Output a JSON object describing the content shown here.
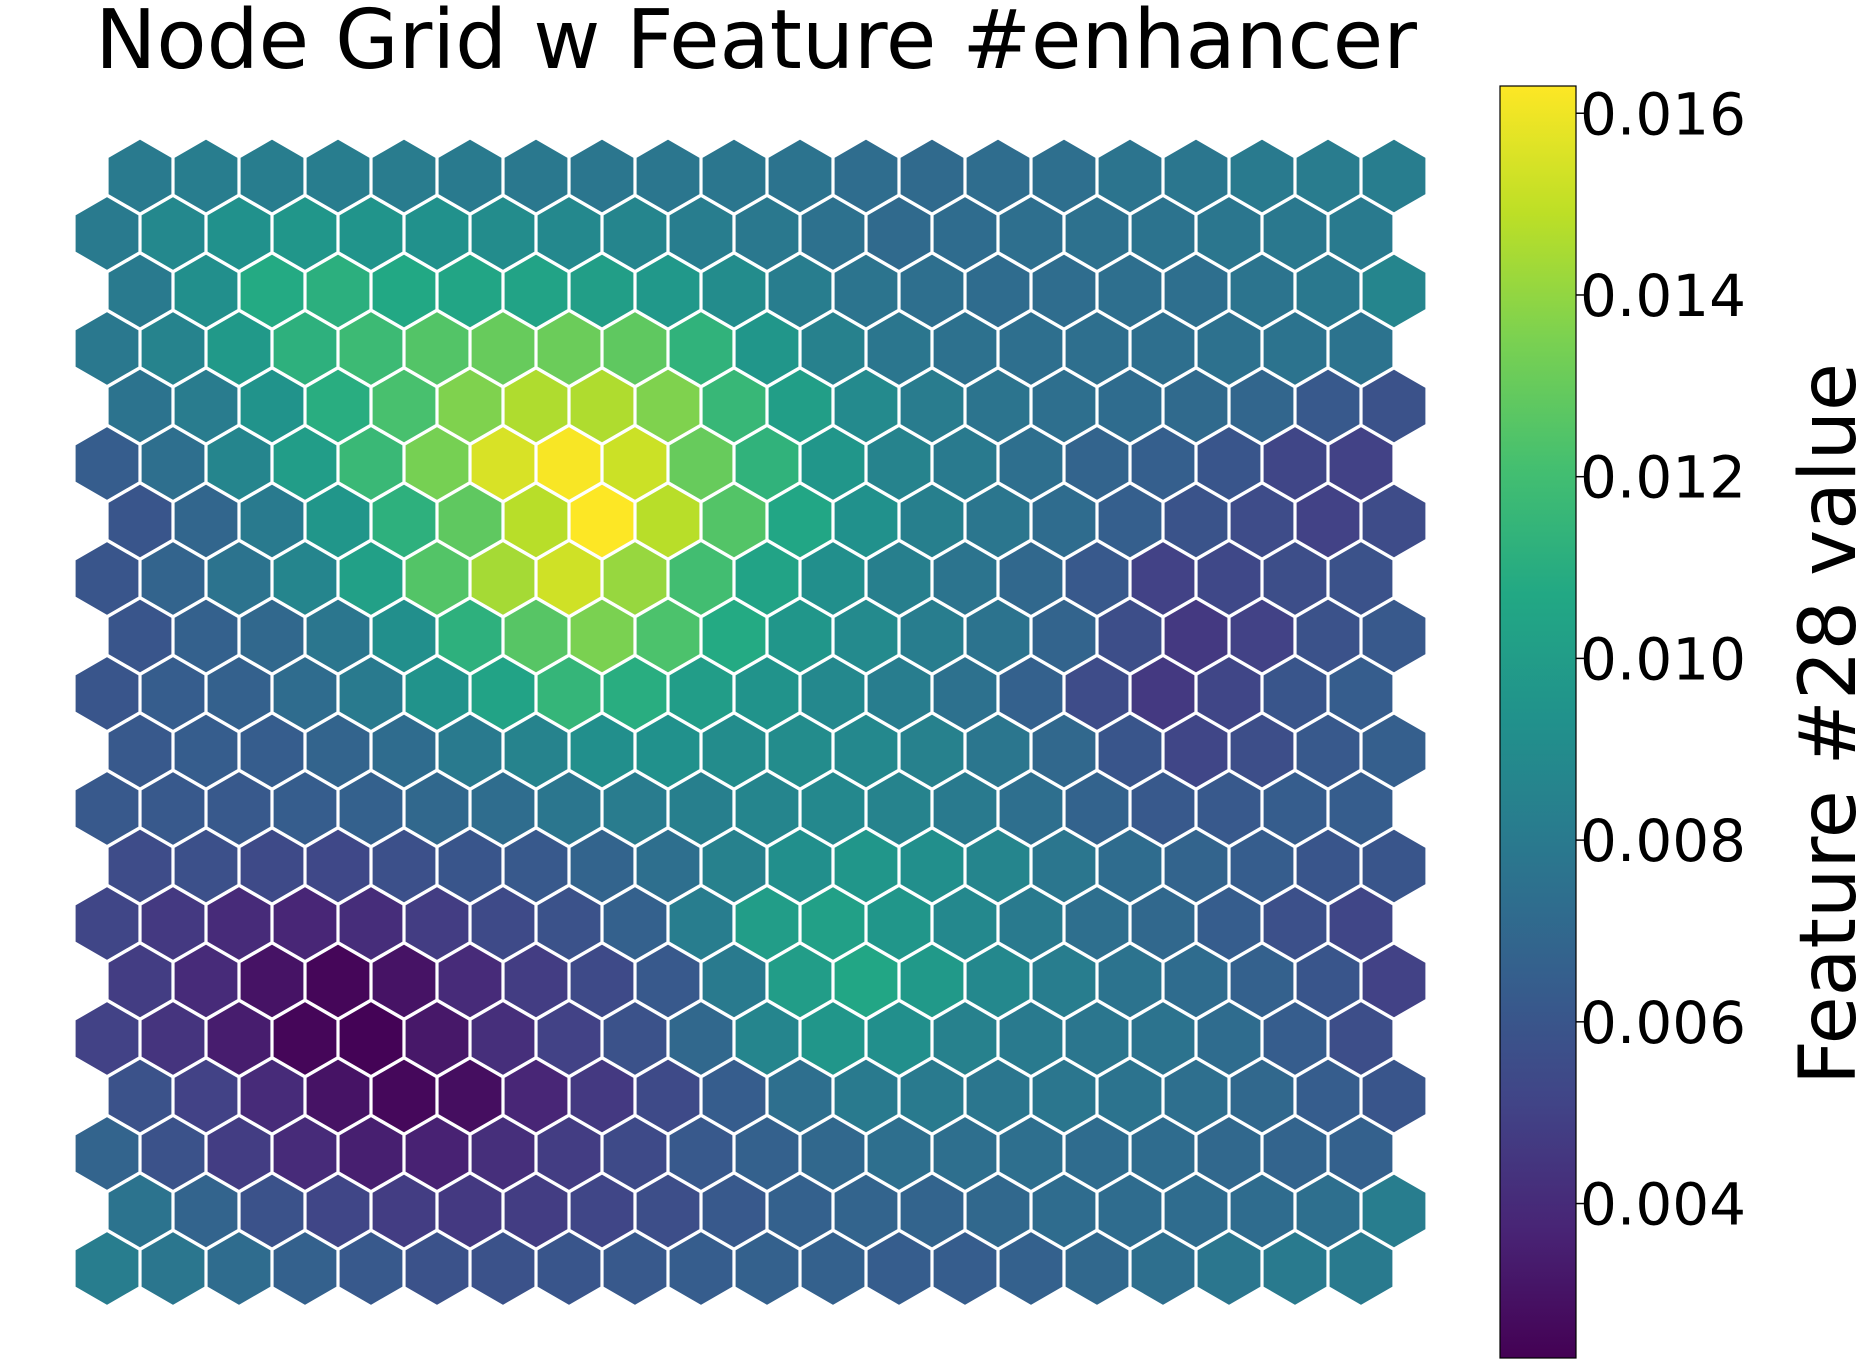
{
  "chart_data": {
    "type": "heatmap",
    "title": "Node Grid w Feature #enhancer",
    "grid": {
      "rows": 20,
      "cols": 20,
      "layout": "hexagonal",
      "axes_visible": false
    },
    "colormap": "viridis",
    "color_range": [
      0.0023,
      0.0163
    ],
    "colorbar": {
      "label": "Feature #28 value",
      "ticks": [
        0.004,
        0.006,
        0.008,
        0.01,
        0.012,
        0.014,
        0.016
      ],
      "tick_labels": [
        "0.004",
        "0.006",
        "0.008",
        "0.010",
        "0.012",
        "0.014",
        "0.016"
      ],
      "position": "right"
    },
    "values": [
      [
        0.008,
        0.0082,
        0.0082,
        0.0082,
        0.0081,
        0.008,
        0.0079,
        0.0078,
        0.0078,
        0.0078,
        0.0076,
        0.0073,
        0.0071,
        0.0073,
        0.0074,
        0.0077,
        0.0078,
        0.008,
        0.0081,
        0.0082
      ],
      [
        0.008,
        0.0088,
        0.0093,
        0.0096,
        0.0095,
        0.0093,
        0.009,
        0.0088,
        0.0086,
        0.0082,
        0.0079,
        0.0075,
        0.0071,
        0.0072,
        0.0074,
        0.0075,
        0.0076,
        0.0078,
        0.0079,
        0.008
      ],
      [
        0.008,
        0.0092,
        0.0108,
        0.0111,
        0.0107,
        0.0105,
        0.0104,
        0.0101,
        0.0097,
        0.009,
        0.0082,
        0.0077,
        0.0074,
        0.0072,
        0.0073,
        0.0074,
        0.0074,
        0.0077,
        0.0079,
        0.0086
      ],
      [
        0.0079,
        0.0085,
        0.0098,
        0.0112,
        0.0118,
        0.0125,
        0.013,
        0.0131,
        0.0128,
        0.0113,
        0.0096,
        0.0084,
        0.0078,
        0.0075,
        0.0074,
        0.0074,
        0.0074,
        0.0075,
        0.0076,
        0.0076
      ],
      [
        0.0076,
        0.0081,
        0.0094,
        0.011,
        0.0122,
        0.0136,
        0.0146,
        0.0146,
        0.0136,
        0.0116,
        0.0101,
        0.0089,
        0.0081,
        0.0077,
        0.0074,
        0.0072,
        0.0071,
        0.0069,
        0.0062,
        0.0058
      ],
      [
        0.0064,
        0.0074,
        0.0086,
        0.01,
        0.0117,
        0.0134,
        0.0155,
        0.0162,
        0.0152,
        0.013,
        0.0113,
        0.0096,
        0.0085,
        0.008,
        0.0074,
        0.0068,
        0.0065,
        0.006,
        0.0052,
        0.005
      ],
      [
        0.006,
        0.0069,
        0.008,
        0.0096,
        0.0112,
        0.0128,
        0.0148,
        0.0163,
        0.0148,
        0.0125,
        0.0106,
        0.0093,
        0.0083,
        0.0078,
        0.0072,
        0.0065,
        0.0059,
        0.0055,
        0.005,
        0.0055
      ],
      [
        0.006,
        0.0068,
        0.0076,
        0.0086,
        0.0102,
        0.0125,
        0.0144,
        0.0153,
        0.0141,
        0.012,
        0.0104,
        0.0092,
        0.0083,
        0.0077,
        0.007,
        0.0062,
        0.005,
        0.0053,
        0.0056,
        0.0058
      ],
      [
        0.006,
        0.0066,
        0.007,
        0.0078,
        0.0092,
        0.0112,
        0.0126,
        0.0135,
        0.0123,
        0.0108,
        0.0096,
        0.0089,
        0.0082,
        0.0076,
        0.0068,
        0.0056,
        0.0046,
        0.005,
        0.0058,
        0.0062
      ],
      [
        0.006,
        0.0064,
        0.0066,
        0.0072,
        0.008,
        0.0094,
        0.0104,
        0.0115,
        0.011,
        0.01,
        0.0094,
        0.0088,
        0.0082,
        0.0075,
        0.0066,
        0.0055,
        0.0046,
        0.0052,
        0.006,
        0.0064
      ],
      [
        0.0062,
        0.0064,
        0.0064,
        0.0068,
        0.0072,
        0.008,
        0.0085,
        0.0092,
        0.0093,
        0.009,
        0.009,
        0.0088,
        0.0084,
        0.0078,
        0.007,
        0.006,
        0.0052,
        0.0056,
        0.0062,
        0.0065
      ],
      [
        0.0062,
        0.0062,
        0.0062,
        0.0064,
        0.0066,
        0.007,
        0.0073,
        0.0078,
        0.0081,
        0.0083,
        0.0086,
        0.0088,
        0.0085,
        0.008,
        0.0074,
        0.0067,
        0.0062,
        0.0062,
        0.0064,
        0.0064
      ],
      [
        0.0055,
        0.0057,
        0.0054,
        0.0053,
        0.0057,
        0.006,
        0.0062,
        0.0068,
        0.0074,
        0.0084,
        0.0092,
        0.0096,
        0.0092,
        0.0086,
        0.0078,
        0.0072,
        0.0068,
        0.0064,
        0.006,
        0.006
      ],
      [
        0.0052,
        0.0046,
        0.004,
        0.0038,
        0.0041,
        0.0048,
        0.0054,
        0.0058,
        0.0066,
        0.0082,
        0.01,
        0.0102,
        0.0096,
        0.0088,
        0.008,
        0.0074,
        0.007,
        0.0064,
        0.0057,
        0.0052
      ],
      [
        0.0048,
        0.004,
        0.003,
        0.0025,
        0.003,
        0.004,
        0.0048,
        0.0054,
        0.0062,
        0.008,
        0.01,
        0.0106,
        0.0098,
        0.0088,
        0.0082,
        0.0076,
        0.0072,
        0.0066,
        0.006,
        0.005
      ],
      [
        0.005,
        0.0044,
        0.0034,
        0.0025,
        0.0024,
        0.0032,
        0.0042,
        0.005,
        0.0058,
        0.007,
        0.0086,
        0.0096,
        0.0092,
        0.0084,
        0.008,
        0.0078,
        0.0076,
        0.0072,
        0.0064,
        0.0056
      ],
      [
        0.0058,
        0.005,
        0.004,
        0.003,
        0.0026,
        0.0028,
        0.0038,
        0.0046,
        0.0054,
        0.0064,
        0.0074,
        0.008,
        0.008,
        0.0078,
        0.0078,
        0.0076,
        0.0074,
        0.007,
        0.0064,
        0.006
      ],
      [
        0.0068,
        0.0058,
        0.0048,
        0.004,
        0.0035,
        0.0036,
        0.0042,
        0.0048,
        0.0054,
        0.0062,
        0.0066,
        0.007,
        0.0074,
        0.0074,
        0.0074,
        0.0072,
        0.0072,
        0.007,
        0.0068,
        0.0066
      ],
      [
        0.0076,
        0.0068,
        0.0058,
        0.0052,
        0.0048,
        0.0046,
        0.0048,
        0.0052,
        0.0056,
        0.0062,
        0.0066,
        0.0068,
        0.0068,
        0.007,
        0.0072,
        0.0072,
        0.0072,
        0.0072,
        0.0074,
        0.0082
      ],
      [
        0.0082,
        0.0078,
        0.0072,
        0.0066,
        0.0062,
        0.0058,
        0.0058,
        0.006,
        0.0062,
        0.0064,
        0.0066,
        0.0066,
        0.0064,
        0.0064,
        0.0066,
        0.007,
        0.0074,
        0.0078,
        0.008,
        0.008
      ]
    ]
  }
}
